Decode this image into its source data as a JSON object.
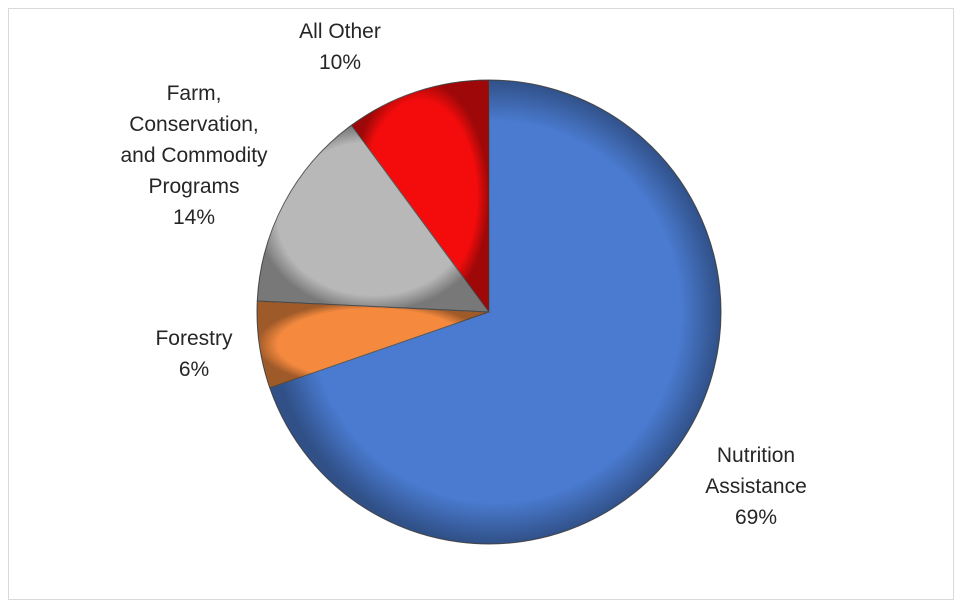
{
  "chart_data": {
    "type": "pie",
    "title": "",
    "slices": [
      {
        "label_lines": [
          "Nutrition",
          "Assistance"
        ],
        "percent_label": "69%",
        "value": 69,
        "color": "#4a7bd0"
      },
      {
        "label_lines": [
          "Forestry"
        ],
        "percent_label": "6%",
        "value": 6,
        "color": "#f58a3f"
      },
      {
        "label_lines": [
          "Farm,",
          "Conservation,",
          "and Commodity",
          "Programs"
        ],
        "percent_label": "14%",
        "value": 14,
        "color": "#b8b8b8"
      },
      {
        "label_lines": [
          "All Other"
        ],
        "percent_label": "10%",
        "value": 10,
        "color": "#f40c0c"
      }
    ],
    "start_angle_deg": 0,
    "direction": "clockwise",
    "legend": "none",
    "labels": "outside"
  }
}
